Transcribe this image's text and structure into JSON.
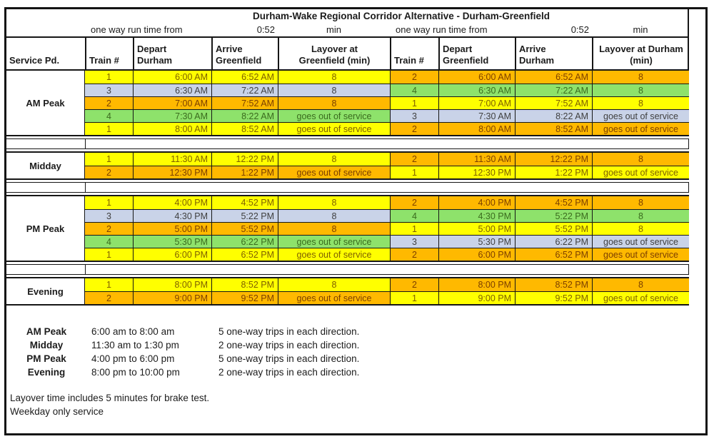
{
  "title": "Durham-Wake Regional Corridor Alternative - Durham-Greenfield",
  "run_time": {
    "label": "one way run time from",
    "value": "0:52",
    "unit": "min"
  },
  "columns": [
    {
      "id": "service-period",
      "line1": "Service Pd."
    },
    {
      "id": "train-number-left",
      "line1": "Train #"
    },
    {
      "id": "depart-durham",
      "line1": "Depart",
      "line2": "Durham"
    },
    {
      "id": "arrive-greenfield",
      "line1": "Arrive",
      "line2": "Greenfield"
    },
    {
      "id": "layover-greenfield",
      "line1": "Layover at",
      "line2": "Greenfield (min)"
    },
    {
      "id": "train-number-right",
      "line1": "Train #"
    },
    {
      "id": "depart-greenfield",
      "line1": "Depart",
      "line2": "Greenfield"
    },
    {
      "id": "arrive-durham",
      "line1": "Arrive",
      "line2": "Durham"
    },
    {
      "id": "layover-durham",
      "line1": "Layover at Durham",
      "line2": "(min)"
    }
  ],
  "train_colors": {
    "1": {
      "bg": "#FFFF00",
      "text": "#7F6000"
    },
    "2": {
      "bg": "#FFB900",
      "text": "#7B3F00"
    },
    "3": {
      "bg": "#C9D3E8",
      "text": "#3F3F3F"
    },
    "4": {
      "bg": "#8EE26B",
      "text": "#3A6B1E"
    }
  },
  "border_color": "#161616",
  "sections": [
    {
      "name": "AM Peak",
      "rows": [
        {
          "l": [
            "1",
            "6:00 AM",
            "6:52 AM",
            "8"
          ],
          "r": [
            "2",
            "6:00 AM",
            "6:52 AM",
            "8"
          ]
        },
        {
          "l": [
            "3",
            "6:30 AM",
            "7:22 AM",
            "8"
          ],
          "r": [
            "4",
            "6:30 AM",
            "7:22 AM",
            "8"
          ]
        },
        {
          "l": [
            "2",
            "7:00 AM",
            "7:52 AM",
            "8"
          ],
          "r": [
            "1",
            "7:00 AM",
            "7:52 AM",
            "8"
          ]
        },
        {
          "l": [
            "4",
            "7:30 AM",
            "8:22 AM",
            "goes out of service"
          ],
          "r": [
            "3",
            "7:30 AM",
            "8:22 AM",
            "goes out of service"
          ]
        },
        {
          "l": [
            "1",
            "8:00 AM",
            "8:52 AM",
            "goes out of service"
          ],
          "r": [
            "2",
            "8:00 AM",
            "8:52 AM",
            "goes out of service"
          ]
        }
      ]
    },
    {
      "name": "Midday",
      "rows": [
        {
          "l": [
            "1",
            "11:30 AM",
            "12:22 PM",
            "8"
          ],
          "r": [
            "2",
            "11:30 AM",
            "12:22 PM",
            "8"
          ]
        },
        {
          "l": [
            "2",
            "12:30 PM",
            "1:22 PM",
            "goes out of service"
          ],
          "r": [
            "1",
            "12:30 PM",
            "1:22 PM",
            "goes out of service"
          ]
        }
      ]
    },
    {
      "name": "PM Peak",
      "rows": [
        {
          "l": [
            "1",
            "4:00 PM",
            "4:52 PM",
            "8"
          ],
          "r": [
            "2",
            "4:00 PM",
            "4:52 PM",
            "8"
          ]
        },
        {
          "l": [
            "3",
            "4:30 PM",
            "5:22 PM",
            "8"
          ],
          "r": [
            "4",
            "4:30 PM",
            "5:22 PM",
            "8"
          ]
        },
        {
          "l": [
            "2",
            "5:00 PM",
            "5:52 PM",
            "8"
          ],
          "r": [
            "1",
            "5:00 PM",
            "5:52 PM",
            "8"
          ]
        },
        {
          "l": [
            "4",
            "5:30 PM",
            "6:22 PM",
            "goes out of service"
          ],
          "r": [
            "3",
            "5:30 PM",
            "6:22 PM",
            "goes out of service"
          ]
        },
        {
          "l": [
            "1",
            "6:00 PM",
            "6:52 PM",
            "goes out of service"
          ],
          "r": [
            "2",
            "6:00 PM",
            "6:52 PM",
            "goes out of service"
          ]
        }
      ]
    },
    {
      "name": "Evening",
      "rows": [
        {
          "l": [
            "1",
            "8:00 PM",
            "8:52 PM",
            "8"
          ],
          "r": [
            "2",
            "8:00 PM",
            "8:52 PM",
            "8"
          ]
        },
        {
          "l": [
            "2",
            "9:00 PM",
            "9:52 PM",
            "goes out of service"
          ],
          "r": [
            "1",
            "9:00 PM",
            "9:52 PM",
            "goes out of service"
          ]
        }
      ]
    }
  ],
  "legend": [
    {
      "period": "AM Peak",
      "range": "6:00 am to 8:00 am",
      "trips": "5 one-way trips in each direction."
    },
    {
      "period": "Midday",
      "range": "11:30 am to 1:30 pm",
      "trips": "2 one-way trips in each direction."
    },
    {
      "period": "PM Peak",
      "range": "4:00 pm to 6:00 pm",
      "trips": "5 one-way trips in each direction."
    },
    {
      "period": "Evening",
      "range": "8:00 pm to 10:00 pm",
      "trips": "2 one-way trips in each direction."
    }
  ],
  "notes": [
    "Layover time includes 5 minutes for brake test.",
    "Weekday only service"
  ]
}
